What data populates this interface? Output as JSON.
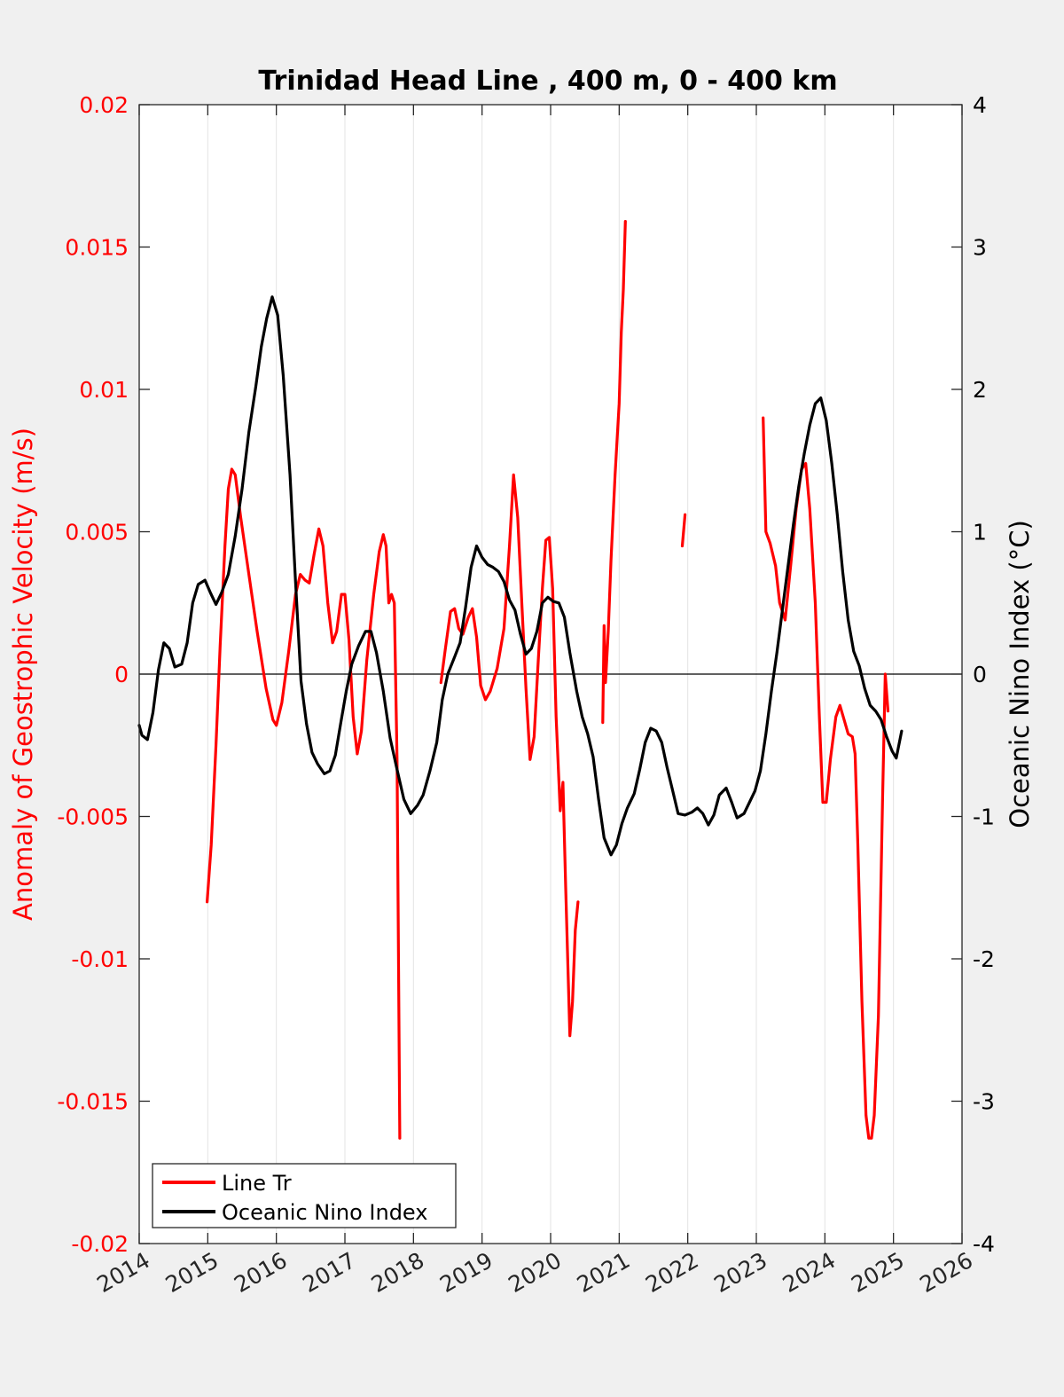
{
  "chart_data": {
    "type": "line",
    "title": "Trinidad Head Line , 400 m, 0 - 400 km",
    "xlabel": "",
    "xlim": [
      2014,
      2026
    ],
    "xticks": [
      2014,
      2015,
      2016,
      2017,
      2018,
      2019,
      2020,
      2021,
      2022,
      2023,
      2024,
      2025,
      2026
    ],
    "xtick_labels": [
      "2014",
      "2015",
      "2016",
      "2017",
      "2018",
      "2019",
      "2020",
      "2021",
      "2022",
      "2023",
      "2024",
      "2025",
      "2026"
    ],
    "grid": "vertical",
    "y_left": {
      "label": "Anomaly of Geostrophic Velocity (m/s)",
      "color": "#ff0000",
      "ylim": [
        -0.02,
        0.02
      ],
      "ticks": [
        0.02,
        0.015,
        0.01,
        0.005,
        0,
        -0.005,
        -0.01,
        -0.015,
        -0.02
      ],
      "tick_labels": [
        "0.02",
        "0.015",
        "0.01",
        "0.005",
        "0",
        "-0.005",
        "-0.01",
        "-0.015",
        "-0.02"
      ]
    },
    "y_right": {
      "label": "Oceanic Nino Index (°C)",
      "color": "#000000",
      "ylim": [
        -4,
        4
      ],
      "ticks": [
        4,
        3,
        2,
        1,
        0,
        -1,
        -2,
        -3,
        -4
      ],
      "tick_labels": [
        "4",
        "3",
        "2",
        "1",
        "0",
        "-1",
        "-2",
        "-3",
        "-4"
      ]
    },
    "zero_line": true,
    "legend": {
      "location": "bottom-left",
      "entries": [
        {
          "label": "Line Tr",
          "color": "#ff0000"
        },
        {
          "label": "Oceanic Nino Index",
          "color": "#000000"
        }
      ]
    },
    "series": [
      {
        "name": "Line Tr",
        "axis": "left",
        "color": "#ff0000",
        "segments": [
          [
            [
              2014.99,
              -0.008
            ],
            [
              2015.05,
              -0.006
            ],
            [
              2015.12,
              -0.0025
            ],
            [
              2015.18,
              0.001
            ],
            [
              2015.25,
              0.0045
            ],
            [
              2015.3,
              0.0065
            ],
            [
              2015.35,
              0.0072
            ],
            [
              2015.4,
              0.007
            ],
            [
              2015.48,
              0.0055
            ],
            [
              2015.6,
              0.0035
            ],
            [
              2015.72,
              0.0015
            ],
            [
              2015.85,
              -0.0005
            ],
            [
              2015.95,
              -0.0016
            ],
            [
              2016.0,
              -0.0018
            ],
            [
              2016.08,
              -0.001
            ],
            [
              2016.18,
              0.0008
            ],
            [
              2016.28,
              0.0028
            ],
            [
              2016.35,
              0.0035
            ],
            [
              2016.42,
              0.0033
            ],
            [
              2016.48,
              0.0032
            ],
            [
              2016.55,
              0.0042
            ],
            [
              2016.62,
              0.0051
            ],
            [
              2016.68,
              0.0045
            ],
            [
              2016.75,
              0.0025
            ],
            [
              2016.82,
              0.0011
            ],
            [
              2016.88,
              0.0015
            ],
            [
              2016.95,
              0.0028
            ],
            [
              2017.0,
              0.0028
            ],
            [
              2017.06,
              0.0012
            ],
            [
              2017.12,
              -0.0015
            ],
            [
              2017.18,
              -0.0028
            ],
            [
              2017.24,
              -0.002
            ],
            [
              2017.32,
              0.0005
            ],
            [
              2017.42,
              0.0028
            ],
            [
              2017.5,
              0.0043
            ],
            [
              2017.56,
              0.0049
            ],
            [
              2017.6,
              0.0045
            ],
            [
              2017.64,
              0.0025
            ],
            [
              2017.68,
              0.0028
            ],
            [
              2017.72,
              0.0025
            ],
            [
              2017.76,
              -0.003
            ],
            [
              2017.8,
              -0.0163
            ]
          ],
          [
            [
              2018.4,
              -0.0003
            ],
            [
              2018.46,
              0.0008
            ],
            [
              2018.54,
              0.0022
            ],
            [
              2018.6,
              0.0023
            ],
            [
              2018.66,
              0.0016
            ],
            [
              2018.72,
              0.0014
            ],
            [
              2018.8,
              0.002
            ],
            [
              2018.86,
              0.0023
            ],
            [
              2018.92,
              0.0013
            ],
            [
              2018.98,
              -0.0004
            ],
            [
              2019.05,
              -0.0009
            ],
            [
              2019.12,
              -0.0006
            ],
            [
              2019.22,
              0.0002
            ],
            [
              2019.32,
              0.0016
            ],
            [
              2019.4,
              0.0045
            ],
            [
              2019.46,
              0.007
            ],
            [
              2019.52,
              0.0055
            ],
            [
              2019.58,
              0.0025
            ],
            [
              2019.64,
              -0.0005
            ],
            [
              2019.7,
              -0.003
            ],
            [
              2019.76,
              -0.0022
            ],
            [
              2019.82,
              0.0005
            ],
            [
              2019.88,
              0.003
            ],
            [
              2019.93,
              0.0047
            ],
            [
              2019.98,
              0.0048
            ],
            [
              2020.03,
              0.003
            ],
            [
              2020.08,
              -0.0015
            ],
            [
              2020.14,
              -0.0048
            ],
            [
              2020.18,
              -0.0038
            ],
            [
              2020.22,
              -0.0075
            ],
            [
              2020.28,
              -0.0127
            ],
            [
              2020.32,
              -0.0115
            ],
            [
              2020.36,
              -0.009
            ],
            [
              2020.4,
              -0.008
            ]
          ],
          [
            [
              2020.76,
              -0.0017
            ],
            [
              2020.78,
              0.0017
            ],
            [
              2020.8,
              -0.0003
            ],
            [
              2020.84,
              0.0015
            ],
            [
              2020.88,
              0.004
            ],
            [
              2020.94,
              0.007
            ],
            [
              2021.0,
              0.0095
            ],
            [
              2021.03,
              0.012
            ],
            [
              2021.06,
              0.0135
            ],
            [
              2021.09,
              0.0159
            ]
          ],
          [
            [
              2021.92,
              0.0045
            ],
            [
              2021.96,
              0.0056
            ]
          ],
          [
            [
              2023.1,
              0.009
            ],
            [
              2023.14,
              0.005
            ],
            [
              2023.2,
              0.0046
            ],
            [
              2023.28,
              0.0038
            ],
            [
              2023.34,
              0.0025
            ],
            [
              2023.42,
              0.0019
            ],
            [
              2023.5,
              0.0038
            ],
            [
              2023.58,
              0.0058
            ],
            [
              2023.66,
              0.0072
            ],
            [
              2023.72,
              0.0074
            ],
            [
              2023.78,
              0.0058
            ],
            [
              2023.86,
              0.0025
            ],
            [
              2023.92,
              -0.0015
            ],
            [
              2023.97,
              -0.0045
            ],
            [
              2024.02,
              -0.0045
            ],
            [
              2024.08,
              -0.003
            ],
            [
              2024.16,
              -0.0015
            ],
            [
              2024.22,
              -0.0011
            ],
            [
              2024.28,
              -0.0016
            ],
            [
              2024.34,
              -0.0021
            ],
            [
              2024.4,
              -0.0022
            ],
            [
              2024.44,
              -0.0028
            ],
            [
              2024.48,
              -0.006
            ],
            [
              2024.54,
              -0.0115
            ],
            [
              2024.6,
              -0.0155
            ],
            [
              2024.64,
              -0.0163
            ],
            [
              2024.68,
              -0.0163
            ],
            [
              2024.72,
              -0.0155
            ],
            [
              2024.78,
              -0.012
            ],
            [
              2024.84,
              -0.0045
            ],
            [
              2024.88,
              0.0
            ],
            [
              2024.92,
              -0.0013
            ]
          ]
        ]
      },
      {
        "name": "Oceanic Nino Index",
        "axis": "right",
        "color": "#000000",
        "points": [
          [
            2014.0,
            -0.36
          ],
          [
            2014.04,
            -0.43
          ],
          [
            2014.12,
            -0.46
          ],
          [
            2014.2,
            -0.27
          ],
          [
            2014.28,
            0.03
          ],
          [
            2014.36,
            0.22
          ],
          [
            2014.44,
            0.18
          ],
          [
            2014.52,
            0.05
          ],
          [
            2014.62,
            0.07
          ],
          [
            2014.7,
            0.22
          ],
          [
            2014.78,
            0.5
          ],
          [
            2014.86,
            0.63
          ],
          [
            2014.96,
            0.66
          ],
          [
            2015.04,
            0.57
          ],
          [
            2015.12,
            0.49
          ],
          [
            2015.2,
            0.57
          ],
          [
            2015.3,
            0.7
          ],
          [
            2015.4,
            0.97
          ],
          [
            2015.5,
            1.3
          ],
          [
            2015.6,
            1.7
          ],
          [
            2015.7,
            2.02
          ],
          [
            2015.78,
            2.3
          ],
          [
            2015.86,
            2.5
          ],
          [
            2015.94,
            2.65
          ],
          [
            2016.02,
            2.52
          ],
          [
            2016.1,
            2.1
          ],
          [
            2016.2,
            1.4
          ],
          [
            2016.28,
            0.65
          ],
          [
            2016.36,
            -0.05
          ],
          [
            2016.44,
            -0.35
          ],
          [
            2016.52,
            -0.55
          ],
          [
            2016.6,
            -0.63
          ],
          [
            2016.7,
            -0.7
          ],
          [
            2016.78,
            -0.68
          ],
          [
            2016.86,
            -0.57
          ],
          [
            2016.94,
            -0.34
          ],
          [
            2017.02,
            -0.12
          ],
          [
            2017.1,
            0.07
          ],
          [
            2017.2,
            0.2
          ],
          [
            2017.3,
            0.3
          ],
          [
            2017.38,
            0.3
          ],
          [
            2017.46,
            0.15
          ],
          [
            2017.56,
            -0.12
          ],
          [
            2017.66,
            -0.45
          ],
          [
            2017.76,
            -0.67
          ],
          [
            2017.86,
            -0.88
          ],
          [
            2017.96,
            -0.98
          ],
          [
            2018.06,
            -0.92
          ],
          [
            2018.14,
            -0.85
          ],
          [
            2018.24,
            -0.68
          ],
          [
            2018.34,
            -0.48
          ],
          [
            2018.42,
            -0.18
          ],
          [
            2018.5,
            0.0
          ],
          [
            2018.6,
            0.12
          ],
          [
            2018.68,
            0.22
          ],
          [
            2018.76,
            0.47
          ],
          [
            2018.84,
            0.75
          ],
          [
            2018.92,
            0.9
          ],
          [
            2019.0,
            0.82
          ],
          [
            2019.08,
            0.77
          ],
          [
            2019.16,
            0.75
          ],
          [
            2019.24,
            0.72
          ],
          [
            2019.32,
            0.65
          ],
          [
            2019.4,
            0.52
          ],
          [
            2019.48,
            0.45
          ],
          [
            2019.56,
            0.28
          ],
          [
            2019.64,
            0.14
          ],
          [
            2019.72,
            0.18
          ],
          [
            2019.8,
            0.3
          ],
          [
            2019.88,
            0.5
          ],
          [
            2019.96,
            0.54
          ],
          [
            2020.04,
            0.51
          ],
          [
            2020.12,
            0.5
          ],
          [
            2020.2,
            0.4
          ],
          [
            2020.28,
            0.15
          ],
          [
            2020.38,
            -0.12
          ],
          [
            2020.46,
            -0.3
          ],
          [
            2020.54,
            -0.42
          ],
          [
            2020.62,
            -0.58
          ],
          [
            2020.7,
            -0.88
          ],
          [
            2020.78,
            -1.15
          ],
          [
            2020.88,
            -1.27
          ],
          [
            2020.96,
            -1.2
          ],
          [
            2021.04,
            -1.05
          ],
          [
            2021.12,
            -0.94
          ],
          [
            2021.22,
            -0.84
          ],
          [
            2021.3,
            -0.67
          ],
          [
            2021.38,
            -0.48
          ],
          [
            2021.46,
            -0.38
          ],
          [
            2021.54,
            -0.4
          ],
          [
            2021.62,
            -0.48
          ],
          [
            2021.7,
            -0.66
          ],
          [
            2021.78,
            -0.82
          ],
          [
            2021.86,
            -0.98
          ],
          [
            2021.96,
            -0.99
          ],
          [
            2022.06,
            -0.97
          ],
          [
            2022.14,
            -0.94
          ],
          [
            2022.22,
            -0.98
          ],
          [
            2022.3,
            -1.06
          ],
          [
            2022.38,
            -0.99
          ],
          [
            2022.46,
            -0.85
          ],
          [
            2022.56,
            -0.8
          ],
          [
            2022.64,
            -0.9
          ],
          [
            2022.72,
            -1.01
          ],
          [
            2022.82,
            -0.98
          ],
          [
            2022.9,
            -0.9
          ],
          [
            2022.98,
            -0.82
          ],
          [
            2023.06,
            -0.68
          ],
          [
            2023.14,
            -0.42
          ],
          [
            2023.22,
            -0.12
          ],
          [
            2023.3,
            0.15
          ],
          [
            2023.38,
            0.45
          ],
          [
            2023.46,
            0.75
          ],
          [
            2023.54,
            1.05
          ],
          [
            2023.62,
            1.32
          ],
          [
            2023.7,
            1.55
          ],
          [
            2023.78,
            1.75
          ],
          [
            2023.86,
            1.9
          ],
          [
            2023.94,
            1.94
          ],
          [
            2024.02,
            1.78
          ],
          [
            2024.1,
            1.48
          ],
          [
            2024.18,
            1.12
          ],
          [
            2024.26,
            0.72
          ],
          [
            2024.34,
            0.38
          ],
          [
            2024.42,
            0.16
          ],
          [
            2024.5,
            0.06
          ],
          [
            2024.58,
            -0.1
          ],
          [
            2024.66,
            -0.22
          ],
          [
            2024.74,
            -0.26
          ],
          [
            2024.82,
            -0.32
          ],
          [
            2024.9,
            -0.44
          ],
          [
            2024.98,
            -0.54
          ],
          [
            2025.04,
            -0.59
          ],
          [
            2025.12,
            -0.4
          ]
        ]
      }
    ]
  }
}
